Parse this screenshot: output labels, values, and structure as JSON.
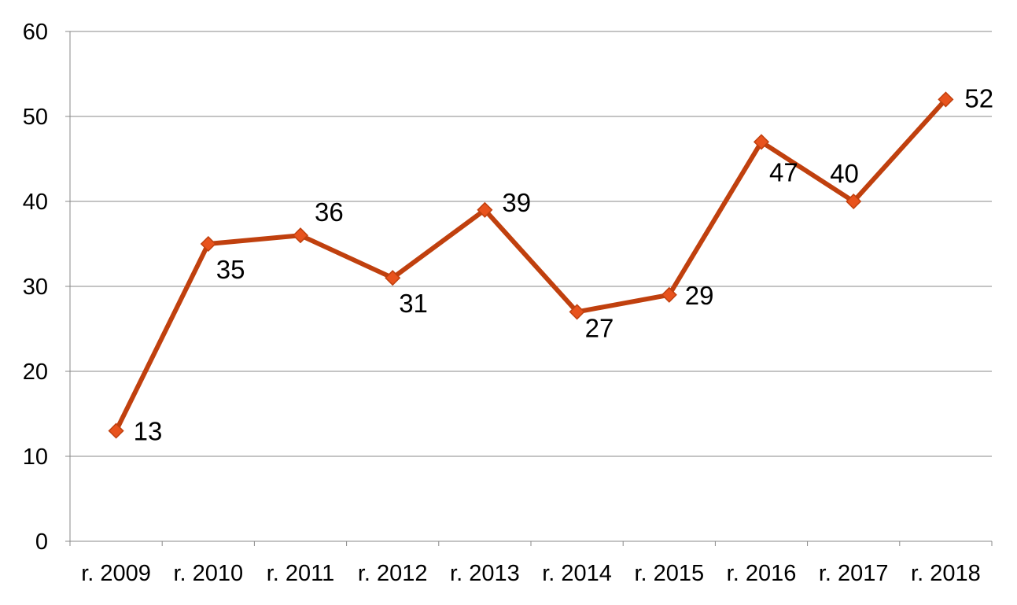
{
  "chart_data": {
    "type": "line",
    "categories": [
      "r. 2009",
      "r. 2010",
      "r. 2011",
      "r. 2012",
      "r. 2013",
      "r. 2014",
      "r. 2015",
      "r. 2016",
      "r. 2017",
      "r. 2018"
    ],
    "series": [
      {
        "values": [
          13,
          35,
          36,
          31,
          39,
          27,
          29,
          47,
          40,
          52
        ],
        "color": "#c0400e",
        "marker_fill": "#e8531d",
        "marker": "diamond"
      }
    ],
    "data_labels": [
      "13",
      "35",
      "36",
      "31",
      "39",
      "27",
      "29",
      "47",
      "40",
      "52"
    ],
    "y_ticks": [
      "0",
      "10",
      "20",
      "30",
      "40",
      "50",
      "60"
    ],
    "ylim": [
      0,
      60
    ],
    "grid": true,
    "legend": "none",
    "gridline_color": "#888888"
  }
}
